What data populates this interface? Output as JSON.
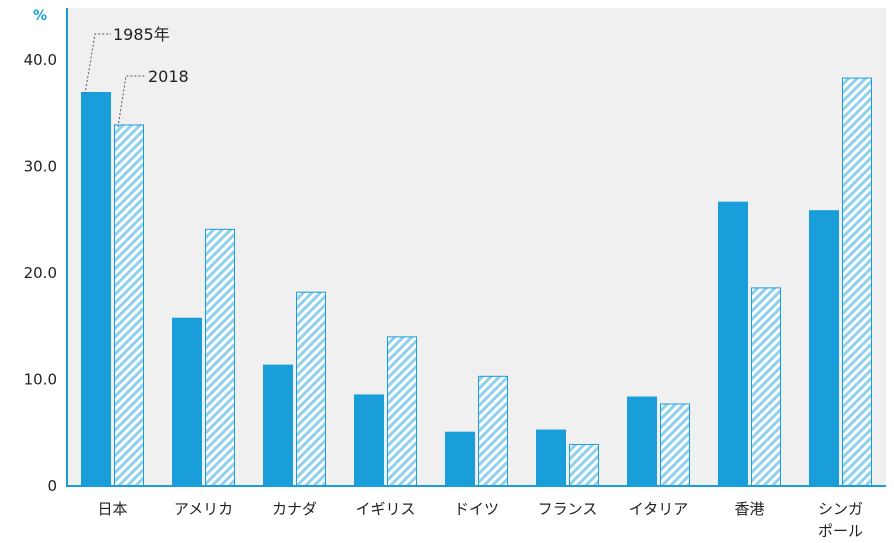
{
  "chart_data": {
    "type": "bar",
    "title": "",
    "xlabel": "",
    "ylabel": "%",
    "ylim": [
      0,
      40
    ],
    "yticks": [
      "0",
      "10.0",
      "20.0",
      "30.0",
      "40.0"
    ],
    "categories": [
      [
        "日本"
      ],
      [
        "アメリカ"
      ],
      [
        "カナダ"
      ],
      [
        "イギリス"
      ],
      [
        "ドイツ"
      ],
      [
        "フランス"
      ],
      [
        "イタリア"
      ],
      [
        "香港"
      ],
      [
        "シンガ",
        "ポール"
      ]
    ],
    "series": [
      {
        "name": "1985年",
        "values": [
          37.0,
          15.8,
          11.4,
          8.6,
          5.1,
          5.3,
          8.4,
          26.7,
          25.9
        ]
      },
      {
        "name": "2018",
        "values": [
          33.9,
          24.1,
          18.2,
          14.0,
          10.3,
          3.9,
          7.7,
          18.6,
          38.3
        ]
      }
    ],
    "grid": false,
    "legend": "callout labels on first category bars"
  },
  "colors": {
    "series_1985": "#1a9ed9",
    "series_2018_stripe": "#8fd0ee",
    "series_2018_border": "#1a9ed9",
    "axis": "#1a9ed9",
    "plot_background": "#f0f0f0",
    "unit_label": "#1a9ed9"
  }
}
